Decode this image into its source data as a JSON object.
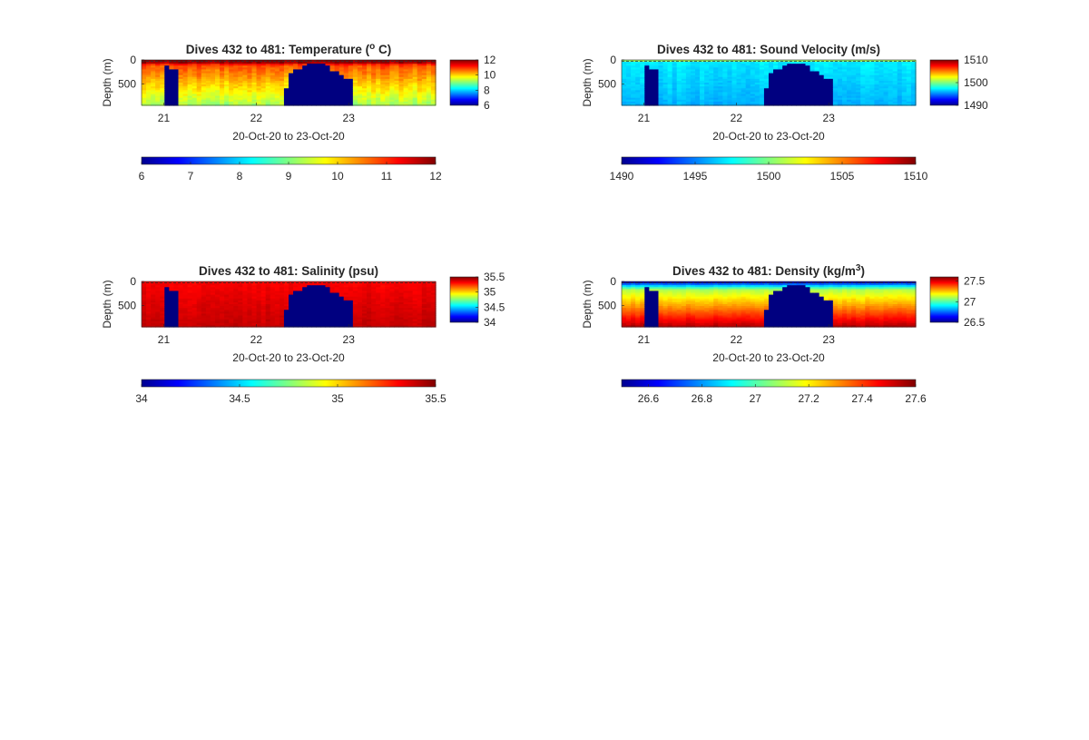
{
  "figure": {
    "background": "#ffffff"
  },
  "chart_data": [
    {
      "type": "heatmap",
      "title_main": "Dives 432 to 481: Temperature (",
      "title_sup": "o",
      "title_end": " C)",
      "xlabel": "20-Oct-20 to 23-Oct-20",
      "ylabel": "Depth (m)",
      "x_ticks": [
        "21",
        "22",
        "23"
      ],
      "y_ticks": [
        "0",
        "500"
      ],
      "xlim": [
        20.76,
        23.94
      ],
      "ylim": [
        0,
        950
      ],
      "colorbar_side": {
        "range": [
          6,
          12
        ],
        "ticks": [
          "12",
          "10",
          "8",
          "6"
        ]
      },
      "colorbar_bottom": {
        "range": [
          6,
          12
        ],
        "ticks": [
          "6",
          "7",
          "8",
          "9",
          "10",
          "11",
          "12"
        ]
      },
      "colormap": "jet",
      "field": "temperature",
      "surface_value": 12,
      "deep_value": 9.2,
      "gap_value": 6,
      "noise": 0.35
    },
    {
      "type": "heatmap",
      "title_main": "Dives 432 to 481: Sound Velocity (m/s)",
      "title_sup": "",
      "title_end": "",
      "xlabel": "20-Oct-20 to 23-Oct-20",
      "ylabel": "Depth (m)",
      "x_ticks": [
        "21",
        "22",
        "23"
      ],
      "y_ticks": [
        "0",
        "500"
      ],
      "xlim": [
        20.76,
        23.94
      ],
      "ylim": [
        0,
        950
      ],
      "colorbar_side": {
        "range": [
          1490,
          1510
        ],
        "ticks": [
          "1510",
          "1500",
          "1490"
        ]
      },
      "colorbar_bottom": {
        "range": [
          1490,
          1510
        ],
        "ticks": [
          "1490",
          "1495",
          "1500",
          "1505",
          "1510"
        ]
      },
      "colormap": "jet",
      "field": "sound",
      "surface_value": 1500.5,
      "deep_value": 1496,
      "gap_value": 1490,
      "noise": 0.7
    },
    {
      "type": "heatmap",
      "title_main": "Dives 432 to 481: Salinity (psu)",
      "title_sup": "",
      "title_end": "",
      "xlabel": "20-Oct-20 to 23-Oct-20",
      "ylabel": "Depth (m)",
      "x_ticks": [
        "21",
        "22",
        "23"
      ],
      "y_ticks": [
        "0",
        "500"
      ],
      "xlim": [
        20.76,
        23.94
      ],
      "ylim": [
        0,
        950
      ],
      "colorbar_side": {
        "range": [
          34,
          35.5
        ],
        "ticks": [
          "35.5",
          "35",
          "34.5",
          "34"
        ]
      },
      "colorbar_bottom": {
        "range": [
          34,
          35.5
        ],
        "ticks": [
          "34",
          "34.5",
          "35",
          "35.5"
        ]
      },
      "colormap": "jet",
      "field": "salinity",
      "surface_value": 35.3,
      "deep_value": 35.4,
      "gap_value": 34,
      "noise": 0.04
    },
    {
      "type": "heatmap",
      "title_main": "Dives 432 to 481: Density (kg/m",
      "title_sup": "3",
      "title_end": ")",
      "xlabel": "20-Oct-20 to 23-Oct-20",
      "ylabel": "Depth (m)",
      "x_ticks": [
        "21",
        "22",
        "23"
      ],
      "y_ticks": [
        "0",
        "500"
      ],
      "xlim": [
        20.76,
        23.94
      ],
      "ylim": [
        0,
        950
      ],
      "colorbar_side": {
        "range": [
          26.5,
          27.6
        ],
        "ticks": [
          "27.5",
          "27",
          "26.5"
        ]
      },
      "colorbar_bottom": {
        "range": [
          26.5,
          27.6
        ],
        "ticks": [
          "26.6",
          "26.8",
          "27",
          "27.2",
          "27.4",
          "27.6"
        ]
      },
      "colormap": "jet",
      "field": "density",
      "surface_value": 26.75,
      "deep_value": 27.5,
      "gap_value": 26.5,
      "noise": 0.03
    }
  ]
}
